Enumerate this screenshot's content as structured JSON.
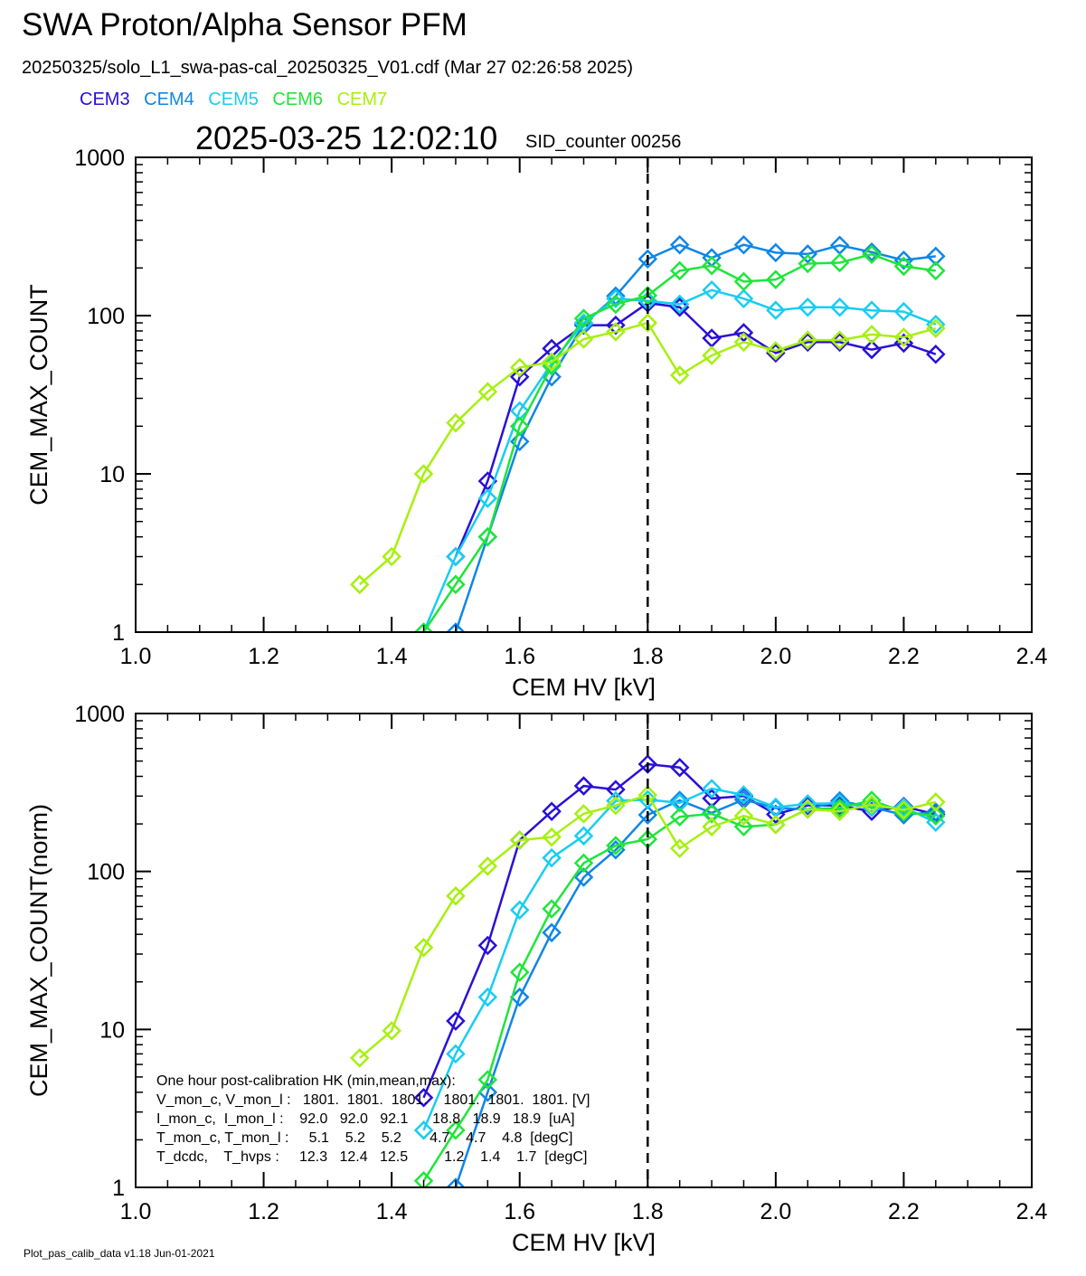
{
  "header": {
    "title": "SWA Proton/Alpha Sensor PFM",
    "subtitle": "20250325/solo_L1_swa-pas-cal_20250325_V01.cdf  (Mar 27 02:26:58 2025)",
    "timestamp": "2025-03-25 12:02:10",
    "sid_counter": "SID_counter 00256"
  },
  "legend": [
    {
      "label": "CEM3",
      "color": "#2a10d6"
    },
    {
      "label": "CEM4",
      "color": "#0f86e6"
    },
    {
      "label": "CEM5",
      "color": "#19cdf0"
    },
    {
      "label": "CEM6",
      "color": "#1fe53a"
    },
    {
      "label": "CEM7",
      "color": "#a6f00f"
    }
  ],
  "footer": "Plot_pas_calib_data v1.18 Jun-01-2021",
  "hk_table": {
    "title": "One hour post-calibration HK (min,mean,max):",
    "rows": [
      "V_mon_c, V_mon_l :   1801.  1801.  1801.    1801.  1801.  1801. [V]",
      "I_mon_c,  I_mon_l :    92.0   92.0   92.1      18.8   18.9   18.9  [uA]",
      "T_mon_c, T_mon_l :     5.1    5.2    5.2       4.7    4.7    4.8  [degC]",
      "T_dcdc,    T_hvps :     12.3   12.4   12.5         1.2    1.4    1.7  [degC]"
    ]
  },
  "chart_data": [
    {
      "type": "line",
      "xlabel": "CEM HV [kV]",
      "ylabel": "CEM_MAX_COUNT",
      "xlim": [
        1.0,
        2.4
      ],
      "ylim": [
        1,
        1000
      ],
      "yscale": "log",
      "xticks": [
        "1.0",
        "1.2",
        "1.4",
        "1.6",
        "1.8",
        "2.0",
        "2.2",
        "2.4"
      ],
      "yticks": [
        "1",
        "10",
        "100",
        "1000"
      ],
      "vline_x": 1.8,
      "series": [
        {
          "name": "CEM3",
          "x": [
            1.5,
            1.55,
            1.6,
            1.65,
            1.7,
            1.75,
            1.8,
            1.85,
            1.9,
            1.95,
            2.0,
            2.05,
            2.1,
            2.15,
            2.2,
            2.25
          ],
          "values": [
            3,
            9,
            41,
            62,
            87,
            87,
            120,
            113,
            72,
            78,
            58,
            68,
            68,
            61,
            67,
            57
          ]
        },
        {
          "name": "CEM4",
          "x": [
            1.5,
            1.55,
            1.6,
            1.65,
            1.7,
            1.75,
            1.8,
            1.85,
            1.9,
            1.95,
            2.0,
            2.05,
            2.1,
            2.15,
            2.2,
            2.25
          ],
          "values": [
            1,
            4,
            16,
            41,
            88,
            133,
            228,
            280,
            232,
            280,
            250,
            245,
            278,
            252,
            224,
            237
          ]
        },
        {
          "name": "CEM5",
          "x": [
            1.45,
            1.5,
            1.55,
            1.6,
            1.65,
            1.7,
            1.75,
            1.8,
            1.85,
            1.9,
            1.95,
            2.0,
            2.05,
            2.1,
            2.15,
            2.2,
            2.25
          ],
          "values": [
            1,
            3,
            7,
            25,
            50,
            90,
            128,
            124,
            118,
            145,
            128,
            108,
            113,
            113,
            108,
            106,
            88
          ]
        },
        {
          "name": "CEM6",
          "x": [
            1.45,
            1.5,
            1.55,
            1.6,
            1.65,
            1.7,
            1.75,
            1.8,
            1.85,
            1.9,
            1.95,
            2.0,
            2.05,
            2.1,
            2.15,
            2.2,
            2.25
          ],
          "values": [
            1,
            2,
            4,
            20,
            48,
            96,
            118,
            134,
            192,
            207,
            164,
            169,
            213,
            216,
            244,
            205,
            192
          ]
        },
        {
          "name": "CEM7",
          "x": [
            1.35,
            1.4,
            1.45,
            1.5,
            1.55,
            1.6,
            1.65,
            1.7,
            1.75,
            1.8,
            1.85,
            1.9,
            1.95,
            2.0,
            2.05,
            2.1,
            2.15,
            2.2,
            2.25
          ],
          "values": [
            2,
            3,
            10,
            21,
            33,
            47,
            51,
            71,
            79,
            90,
            42,
            56,
            68,
            60,
            70,
            70,
            76,
            73,
            83
          ]
        }
      ]
    },
    {
      "type": "line",
      "xlabel": "CEM HV [kV]",
      "ylabel": "CEM_MAX_COUNT(norm)",
      "xlim": [
        1.0,
        2.4
      ],
      "ylim": [
        1,
        1000
      ],
      "yscale": "log",
      "xticks": [
        "1.0",
        "1.2",
        "1.4",
        "1.6",
        "1.8",
        "2.0",
        "2.2",
        "2.4"
      ],
      "yticks": [
        "1",
        "10",
        "100",
        "1000"
      ],
      "vline_x": 1.8,
      "series": [
        {
          "name": "CEM3",
          "x": [
            1.45,
            1.5,
            1.55,
            1.6,
            1.65,
            1.7,
            1.75,
            1.8,
            1.85,
            1.9,
            1.95,
            2.0,
            2.05,
            2.1,
            2.15,
            2.2,
            2.25
          ],
          "values": [
            3.7,
            11.3,
            34,
            158,
            240,
            348,
            330,
            478,
            455,
            290,
            300,
            230,
            262,
            262,
            240,
            258,
            230
          ]
        },
        {
          "name": "CEM4",
          "x": [
            1.5,
            1.55,
            1.6,
            1.65,
            1.7,
            1.75,
            1.8,
            1.85,
            1.9,
            1.95,
            2.0,
            2.05,
            2.1,
            2.15,
            2.2,
            2.25
          ],
          "values": [
            1,
            4,
            16,
            41,
            92,
            137,
            228,
            282,
            235,
            285,
            252,
            248,
            280,
            255,
            228,
            238
          ]
        },
        {
          "name": "CEM5",
          "x": [
            1.45,
            1.5,
            1.55,
            1.6,
            1.65,
            1.7,
            1.75,
            1.8,
            1.85,
            1.9,
            1.95,
            2.0,
            2.05,
            2.1,
            2.15,
            2.2,
            2.25
          ],
          "values": [
            2.3,
            7,
            16,
            57,
            122,
            168,
            280,
            285,
            272,
            335,
            305,
            255,
            268,
            270,
            255,
            255,
            205
          ]
        },
        {
          "name": "CEM6",
          "x": [
            1.45,
            1.5,
            1.55,
            1.6,
            1.65,
            1.7,
            1.75,
            1.8,
            1.85,
            1.9,
            1.95,
            2.0,
            2.05,
            2.1,
            2.15,
            2.2,
            2.25
          ],
          "values": [
            1.1,
            2.3,
            4.8,
            23,
            58,
            113,
            146,
            160,
            222,
            232,
            192,
            198,
            248,
            252,
            282,
            238,
            225
          ]
        },
        {
          "name": "CEM7",
          "x": [
            1.35,
            1.4,
            1.45,
            1.5,
            1.55,
            1.6,
            1.65,
            1.7,
            1.75,
            1.8,
            1.85,
            1.9,
            1.95,
            2.0,
            2.05,
            2.1,
            2.15,
            2.2,
            2.25
          ],
          "values": [
            6.6,
            9.8,
            33,
            70,
            108,
            158,
            165,
            232,
            262,
            305,
            140,
            192,
            225,
            198,
            248,
            240,
            265,
            245,
            275
          ]
        }
      ]
    }
  ]
}
